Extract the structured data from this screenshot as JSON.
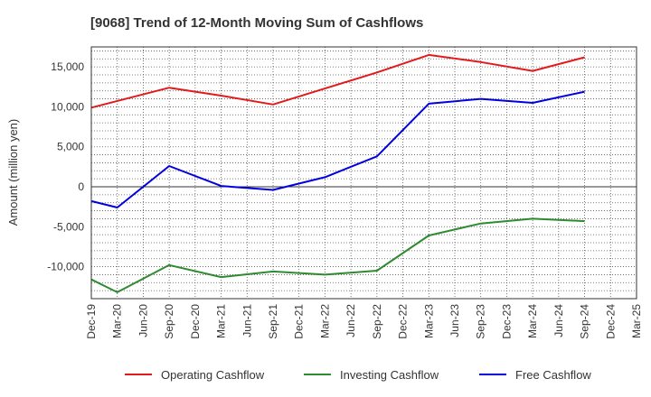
{
  "chart_data": {
    "type": "line",
    "title": "[9068]  Trend of 12-Month Moving Sum of Cashflows",
    "ylabel": "Amount (million yen)",
    "xlabel": "",
    "categories": [
      "Dec-19",
      "Mar-20",
      "Jun-20",
      "Sep-20",
      "Dec-20",
      "Mar-21",
      "Jun-21",
      "Sep-21",
      "Dec-21",
      "Mar-22",
      "Jun-22",
      "Sep-22",
      "Dec-22",
      "Mar-23",
      "Jun-23",
      "Sep-23",
      "Dec-23",
      "Mar-24",
      "Jun-24",
      "Sep-24",
      "Dec-24",
      "Mar-25"
    ],
    "ylim": [
      -14000,
      17500
    ],
    "yticks": [
      -10000,
      -5000,
      0,
      5000,
      10000,
      15000
    ],
    "ytick_labels": [
      "-10,000",
      "-5,000",
      "0",
      "5,000",
      "10,000",
      "15,000"
    ],
    "grid": true,
    "legend_position": "bottom",
    "series": [
      {
        "name": "Operating Cashflow",
        "color": "#e31a1c",
        "values": [
          9900,
          null,
          null,
          12400,
          null,
          11400,
          null,
          10300,
          null,
          12300,
          null,
          14300,
          null,
          16500,
          null,
          15600,
          null,
          14500,
          null,
          16200,
          null,
          null
        ]
      },
      {
        "name": "Investing Cashflow",
        "color": "#2e8b2e",
        "values": [
          -11600,
          -13200,
          null,
          -9800,
          null,
          -11300,
          null,
          -10600,
          null,
          -11000,
          null,
          -10500,
          null,
          -6100,
          null,
          -4600,
          null,
          -4000,
          null,
          -4300,
          null,
          null
        ]
      },
      {
        "name": "Free Cashflow",
        "color": "#0000e0",
        "values": [
          -1800,
          -2600,
          null,
          2600,
          null,
          100,
          null,
          -400,
          null,
          1200,
          null,
          3800,
          null,
          10400,
          null,
          11000,
          null,
          10500,
          null,
          11900,
          null,
          null
        ]
      }
    ]
  }
}
